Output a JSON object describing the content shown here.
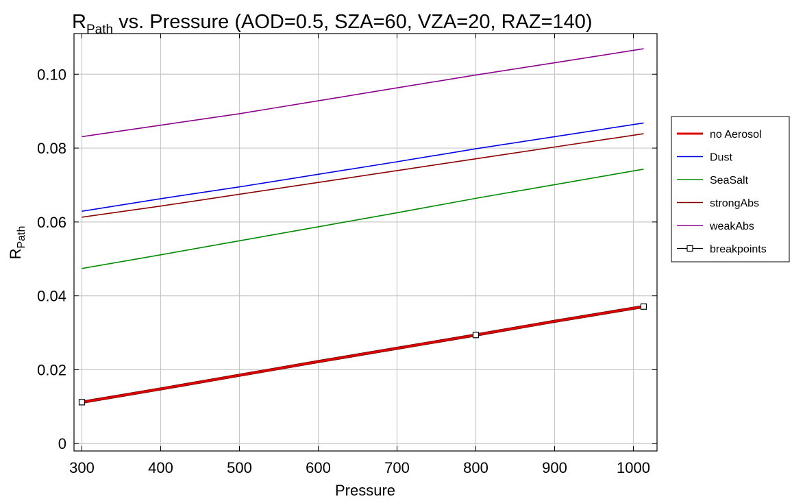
{
  "chart_data": {
    "type": "line",
    "title": {
      "main": "R",
      "sub": "Path",
      "rest": " vs. Pressure  (AOD=0.5, SZA=60, VZA=20, RAZ=140)"
    },
    "xlabel": "Pressure",
    "ylabel": {
      "main": "R",
      "sub": "Path"
    },
    "xlim": [
      290,
      1030
    ],
    "ylim": [
      -0.002,
      0.111
    ],
    "xticks": [
      300,
      400,
      500,
      600,
      700,
      800,
      900,
      1000
    ],
    "yticks": [
      0,
      0.02,
      0.04,
      0.06,
      0.08,
      0.1
    ],
    "ytick_labels": [
      "0",
      "0.02",
      "0.04",
      "0.06",
      "0.08",
      "0.10"
    ],
    "grid": true,
    "legend_position": "right",
    "x": [
      300,
      400,
      500,
      600,
      700,
      800,
      900,
      1013
    ],
    "series": [
      {
        "name": "no Aerosol",
        "color": "#e00000",
        "width": 3,
        "values": [
          0.0112,
          0.0148,
          0.0185,
          0.0222,
          0.0258,
          0.0294,
          0.0331,
          0.0371
        ]
      },
      {
        "name": "Dust",
        "color": "#0000e6",
        "width": 1.6,
        "values": [
          0.0629,
          0.0663,
          0.0695,
          0.0729,
          0.0763,
          0.0798,
          0.0831,
          0.0868
        ]
      },
      {
        "name": "SeaSalt",
        "color": "#008a00",
        "width": 1.6,
        "values": [
          0.0474,
          0.0511,
          0.0549,
          0.0587,
          0.0625,
          0.0664,
          0.0701,
          0.0743
        ]
      },
      {
        "name": "strongAbs",
        "color": "#8b0000",
        "width": 1.6,
        "values": [
          0.0613,
          0.0643,
          0.0675,
          0.0707,
          0.0739,
          0.0771,
          0.0803,
          0.0839
        ]
      },
      {
        "name": "weakAbs",
        "color": "#8b008b",
        "width": 1.6,
        "values": [
          0.0831,
          0.0862,
          0.0893,
          0.0928,
          0.0963,
          0.0998,
          0.1031,
          0.1069
        ]
      }
    ],
    "breakpoints": {
      "name": "breakpoints",
      "x": [
        300,
        800,
        1013
      ],
      "values": [
        0.0112,
        0.0294,
        0.0371
      ]
    }
  }
}
